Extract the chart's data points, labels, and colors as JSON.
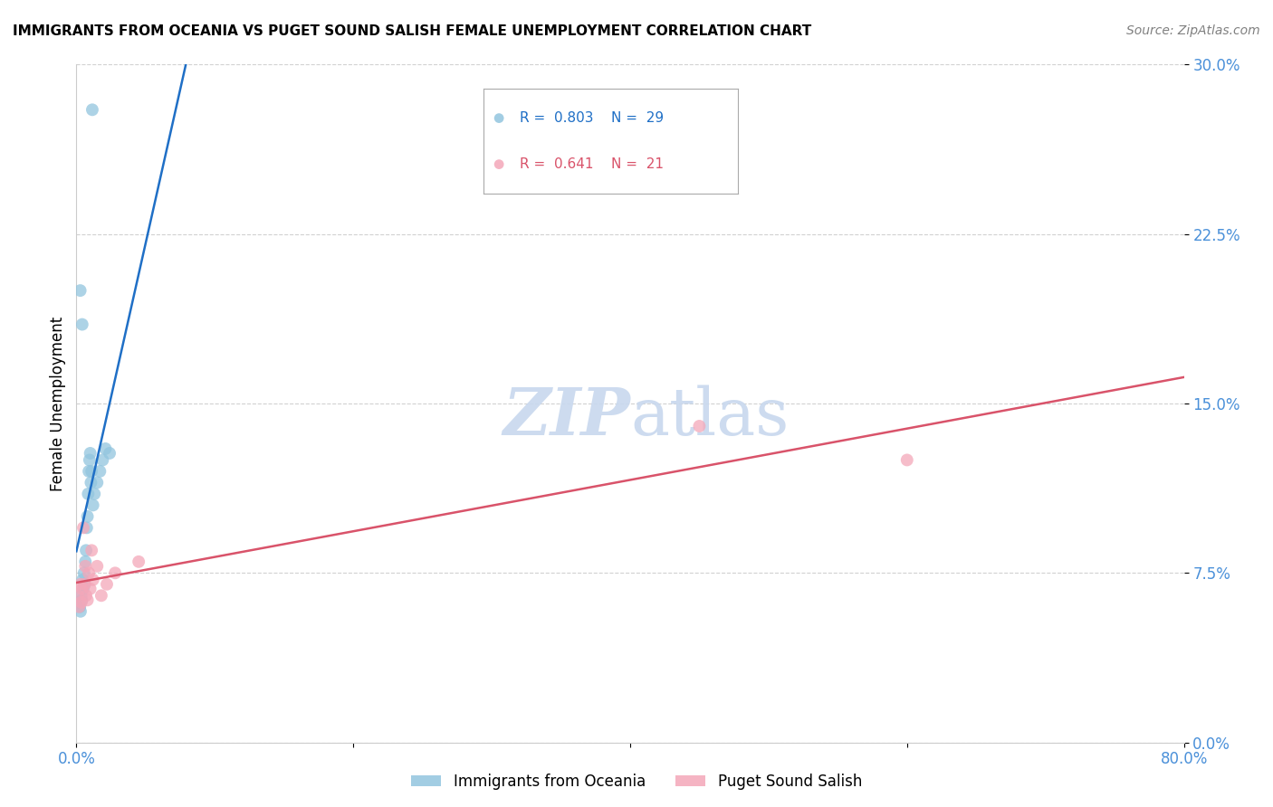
{
  "title": "IMMIGRANTS FROM OCEANIA VS PUGET SOUND SALISH FEMALE UNEMPLOYMENT CORRELATION CHART",
  "source": "Source: ZipAtlas.com",
  "ylabel": "Female Unemployment",
  "ytick_labels": [
    "0.0%",
    "7.5%",
    "15.0%",
    "22.5%",
    "30.0%"
  ],
  "ytick_values": [
    0.0,
    7.5,
    15.0,
    22.5,
    30.0
  ],
  "xtick_labels": [
    "0.0%",
    "",
    "",
    "",
    "80.0%"
  ],
  "xtick_values": [
    0,
    20,
    40,
    60,
    80
  ],
  "xlim": [
    0.0,
    80.0
  ],
  "ylim": [
    0.0,
    30.0
  ],
  "legend_blue_r": "0.803",
  "legend_blue_n": "29",
  "legend_pink_r": "0.641",
  "legend_pink_n": "21",
  "legend_blue_label": "Immigrants from Oceania",
  "legend_pink_label": "Puget Sound Salish",
  "blue_color": "#92c5de",
  "pink_color": "#f4a7b9",
  "line_blue_color": "#1f6fc6",
  "line_pink_color": "#d9536a",
  "watermark_color": "#c8d8ee",
  "blue_x": [
    0.15,
    0.25,
    0.3,
    0.35,
    0.4,
    0.45,
    0.5,
    0.55,
    0.6,
    0.65,
    0.7,
    0.75,
    0.8,
    0.85,
    0.9,
    0.95,
    1.0,
    1.05,
    1.1,
    1.2,
    1.3,
    1.5,
    1.7,
    1.9,
    2.1,
    2.4,
    0.28,
    0.42,
    1.15
  ],
  "blue_y": [
    6.2,
    6.0,
    5.8,
    6.5,
    6.3,
    7.2,
    6.8,
    7.5,
    7.0,
    8.0,
    8.5,
    9.5,
    10.0,
    11.0,
    12.0,
    12.5,
    12.8,
    11.5,
    12.0,
    10.5,
    11.0,
    11.5,
    12.0,
    12.5,
    13.0,
    12.8,
    20.0,
    18.5,
    28.0
  ],
  "pink_x": [
    0.1,
    0.2,
    0.3,
    0.4,
    0.5,
    0.6,
    0.7,
    0.8,
    0.9,
    1.0,
    1.2,
    1.5,
    1.8,
    2.2,
    0.35,
    0.65,
    1.1,
    2.8,
    4.5,
    45.0,
    60.0
  ],
  "pink_y": [
    6.5,
    6.0,
    7.0,
    6.8,
    9.5,
    7.0,
    6.5,
    6.3,
    7.5,
    6.8,
    7.2,
    7.8,
    6.5,
    7.0,
    6.2,
    7.8,
    8.5,
    7.5,
    8.0,
    14.0,
    12.5
  ],
  "marker_size": 100,
  "background_color": "#ffffff",
  "grid_color": "#cccccc"
}
